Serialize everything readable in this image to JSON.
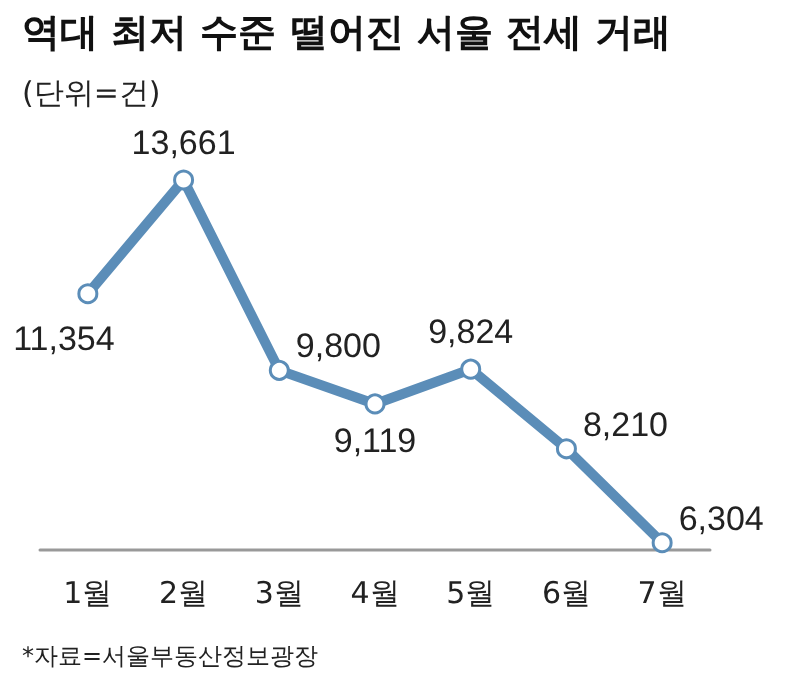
{
  "chart_data": {
    "type": "line",
    "title": "역대 최저 수준 떨어진 서울 전세 거래",
    "subtitle": "(단위=건)",
    "annotations": [
      "*자료=서울부동산정보광장"
    ],
    "categories": [
      "1월",
      "2월",
      "3월",
      "4월",
      "5월",
      "6월",
      "7월"
    ],
    "series": [
      {
        "color": "#5b8db8",
        "values": [
          11354,
          13661,
          9800,
          9119,
          9824,
          8210,
          6304
        ],
        "value_labels": [
          "11,354",
          "13,661",
          "9,800",
          "9,119",
          "9,824",
          "8,210",
          "6,304"
        ]
      }
    ],
    "marker": "circle",
    "line_style": "solid",
    "grid": false,
    "tick_labels": "x"
  }
}
